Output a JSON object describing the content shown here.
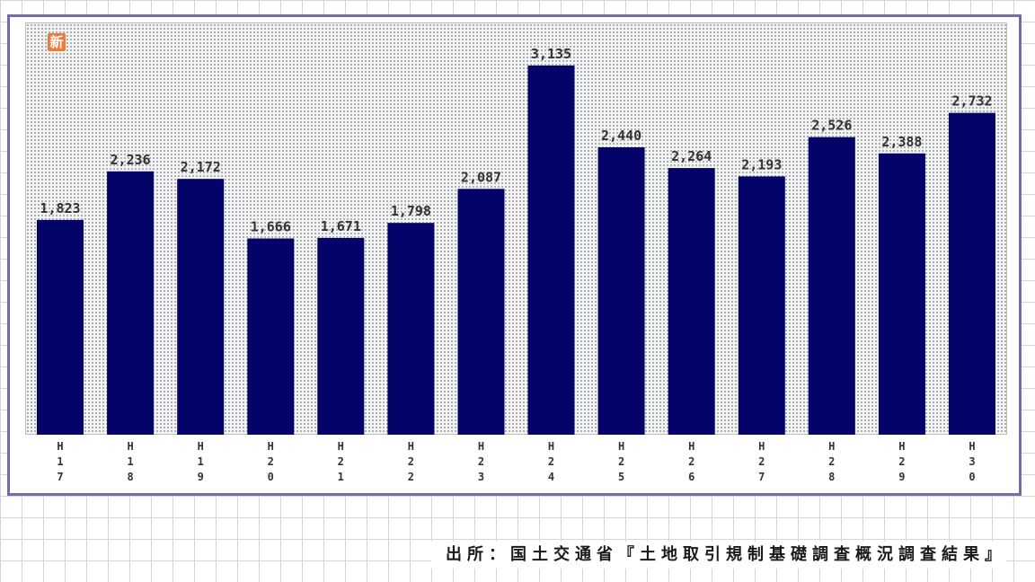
{
  "logo": {
    "text": "新",
    "color": "#ee7a3c"
  },
  "source_note": "出所：国土交通省『土地取引規制基礎調査概況調査結果』",
  "chart_data": {
    "type": "bar",
    "categories": [
      "H17",
      "H18",
      "H19",
      "H20",
      "H21",
      "H22",
      "H23",
      "H24",
      "H25",
      "H26",
      "H27",
      "H28",
      "H29",
      "H30"
    ],
    "values": [
      1823,
      2236,
      2172,
      1666,
      1671,
      1798,
      2087,
      3135,
      2440,
      2264,
      2193,
      2526,
      2388,
      2732
    ],
    "value_labels": [
      "1,823",
      "2,236",
      "2,172",
      "1,666",
      "1,671",
      "1,798",
      "2,087",
      "3,135",
      "2,440",
      "2,264",
      "2,193",
      "2,526",
      "2,388",
      "2,732"
    ],
    "title": "",
    "xlabel": "",
    "ylabel": "",
    "ylim": [
      0,
      3500
    ],
    "grid": false,
    "legend": "none",
    "bar_color": "#03036a",
    "plot_background": "dotted-gray"
  }
}
